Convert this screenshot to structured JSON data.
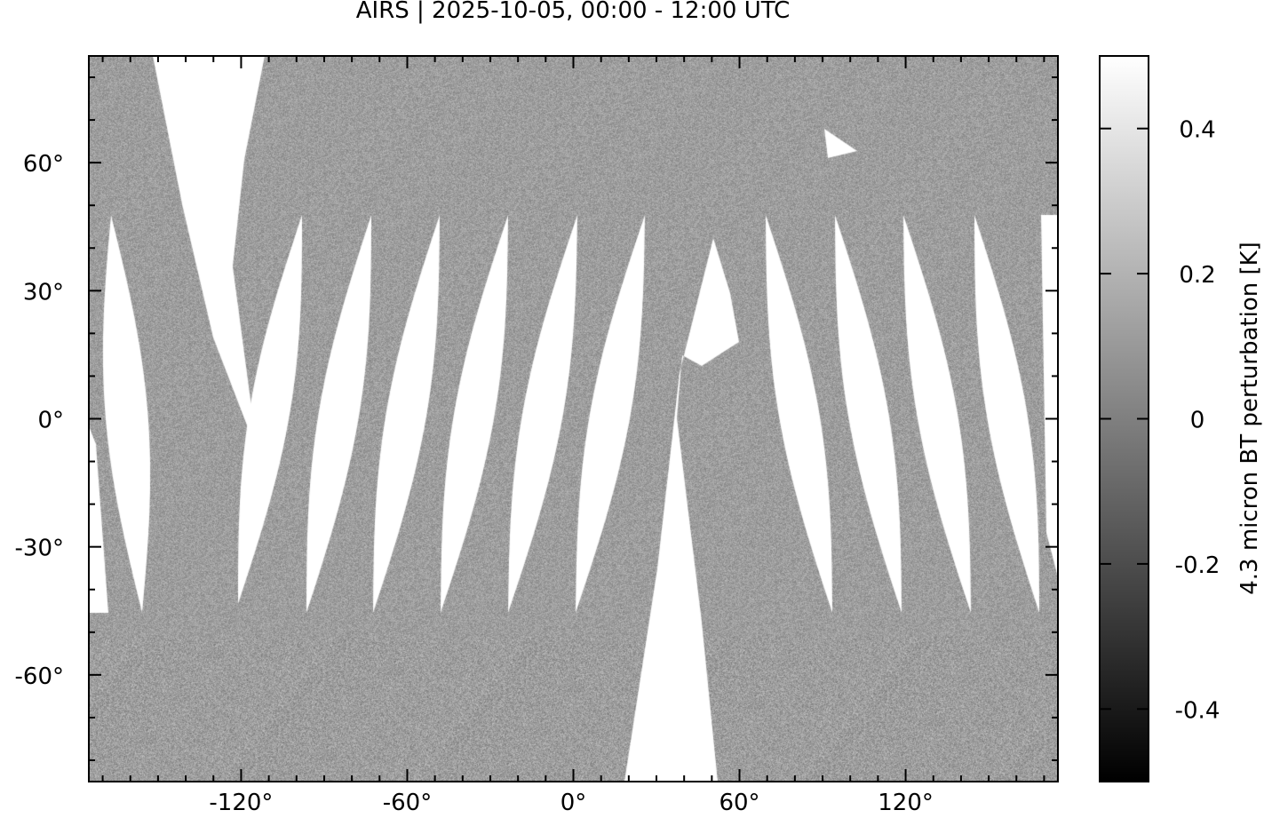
{
  "title": "AIRS | 2025-10-05, 00:00 - 12:00 UTC",
  "chart_data": {
    "type": "heatmap",
    "projection": "equirectangular",
    "lon_range": [
      -175,
      175
    ],
    "lat_range": [
      -85,
      85
    ],
    "x_ticks": [
      -120,
      -60,
      0,
      60,
      120
    ],
    "x_tick_labels": [
      "-120°",
      "-60°",
      "0°",
      "60°",
      "120°"
    ],
    "y_ticks": [
      60,
      30,
      0,
      -30,
      -60
    ],
    "y_tick_labels": [
      "60°",
      "30°",
      "0°",
      "-30°",
      "-60°"
    ],
    "colorbar": {
      "label": "4.3 micron BT perturbation [K]",
      "range": [
        -0.5,
        0.5
      ],
      "ticks": [
        0.4,
        0.2,
        0,
        -0.2,
        -0.4
      ],
      "tick_labels": [
        "0.4",
        "0.2",
        "0",
        "-0.2",
        "-0.4"
      ],
      "colormap": "grayscale",
      "low_color": "#000000",
      "high_color": "#ffffff"
    },
    "missing_data_color": "#ffffff",
    "coastlines": true,
    "grid": false
  }
}
